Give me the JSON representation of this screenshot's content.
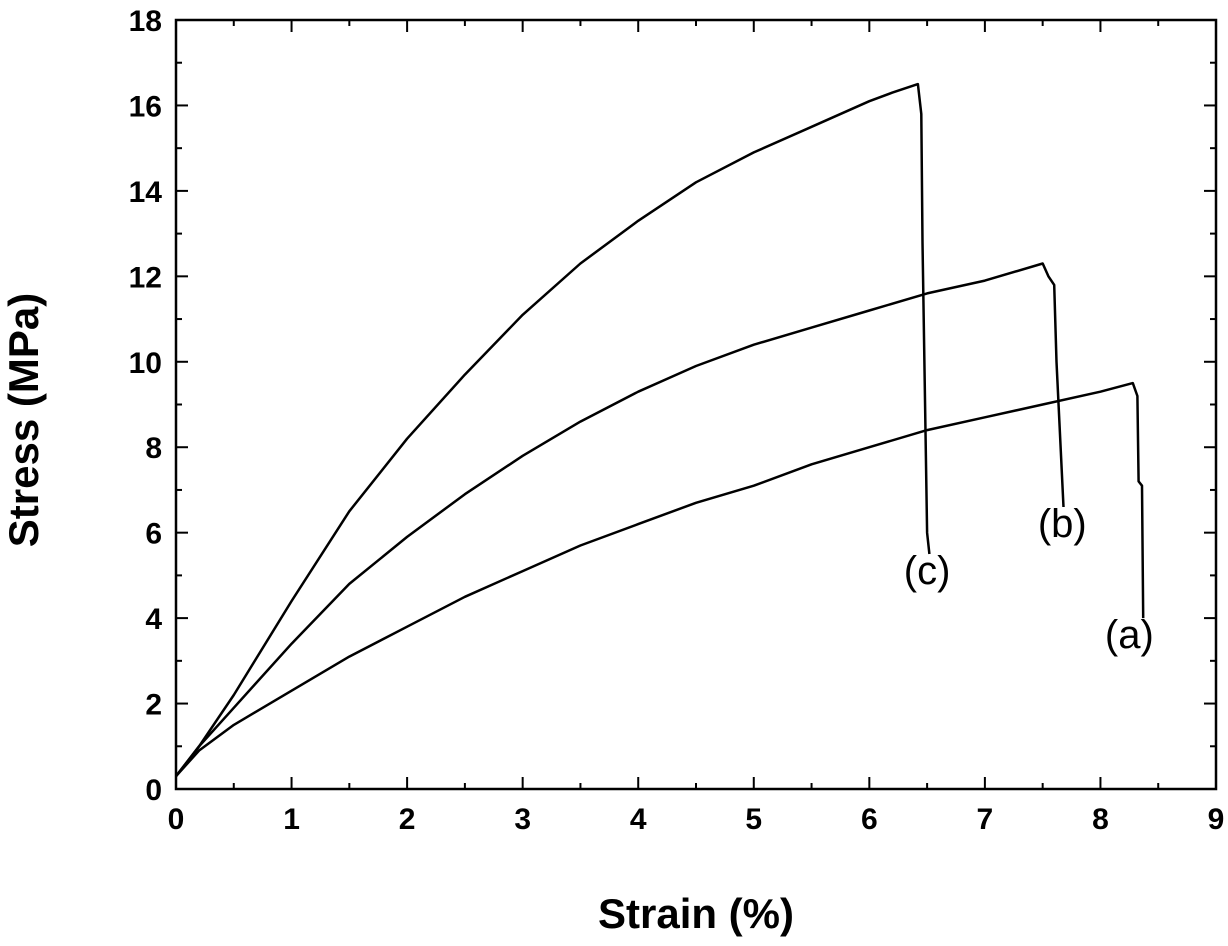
{
  "chart_data": {
    "type": "line",
    "xlabel": "Strain (%)",
    "ylabel": "Stress (MPa)",
    "xlim": [
      0,
      9
    ],
    "ylim": [
      0,
      18
    ],
    "x_ticks": [
      0,
      1,
      2,
      3,
      4,
      5,
      6,
      7,
      8,
      9
    ],
    "y_ticks": [
      0,
      2,
      4,
      6,
      8,
      10,
      12,
      14,
      16,
      18
    ],
    "grid": false,
    "series": [
      {
        "name": "(a)",
        "x": [
          0.0,
          0.2,
          0.5,
          1.0,
          1.5,
          2.0,
          2.5,
          3.0,
          3.5,
          4.0,
          4.5,
          5.0,
          5.5,
          6.0,
          6.5,
          7.0,
          7.5,
          8.0,
          8.28,
          8.32,
          8.33,
          8.36,
          8.37
        ],
        "y": [
          0.3,
          0.9,
          1.5,
          2.3,
          3.1,
          3.8,
          4.5,
          5.1,
          5.7,
          6.2,
          6.7,
          7.1,
          7.6,
          8.0,
          8.4,
          8.7,
          9.0,
          9.3,
          9.5,
          9.2,
          7.2,
          7.1,
          4.0
        ]
      },
      {
        "name": "(b)",
        "x": [
          0.0,
          0.2,
          0.5,
          1.0,
          1.5,
          2.0,
          2.5,
          3.0,
          3.5,
          4.0,
          4.5,
          5.0,
          5.5,
          6.0,
          6.5,
          7.0,
          7.5,
          7.55,
          7.6,
          7.62,
          7.68
        ],
        "y": [
          0.3,
          1.0,
          1.9,
          3.4,
          4.8,
          5.9,
          6.9,
          7.8,
          8.6,
          9.3,
          9.9,
          10.4,
          10.8,
          11.2,
          11.6,
          11.9,
          12.3,
          12.0,
          11.8,
          10.0,
          6.6
        ]
      },
      {
        "name": "(c)",
        "x": [
          0.0,
          0.2,
          0.5,
          1.0,
          1.5,
          2.0,
          2.5,
          3.0,
          3.5,
          4.0,
          4.5,
          5.0,
          5.5,
          6.0,
          6.2,
          6.42,
          6.45,
          6.46,
          6.5,
          6.52
        ],
        "y": [
          0.3,
          1.0,
          2.2,
          4.4,
          6.5,
          8.2,
          9.7,
          11.1,
          12.3,
          13.3,
          14.2,
          14.9,
          15.5,
          16.1,
          16.3,
          16.5,
          15.8,
          12.8,
          6.0,
          5.5
        ]
      }
    ],
    "annotations": [
      {
        "text": "(a)",
        "x": 8.25,
        "y": 3.3
      },
      {
        "text": "(b)",
        "x": 7.67,
        "y": 5.9
      },
      {
        "text": "(c)",
        "x": 6.5,
        "y": 4.8
      }
    ]
  }
}
